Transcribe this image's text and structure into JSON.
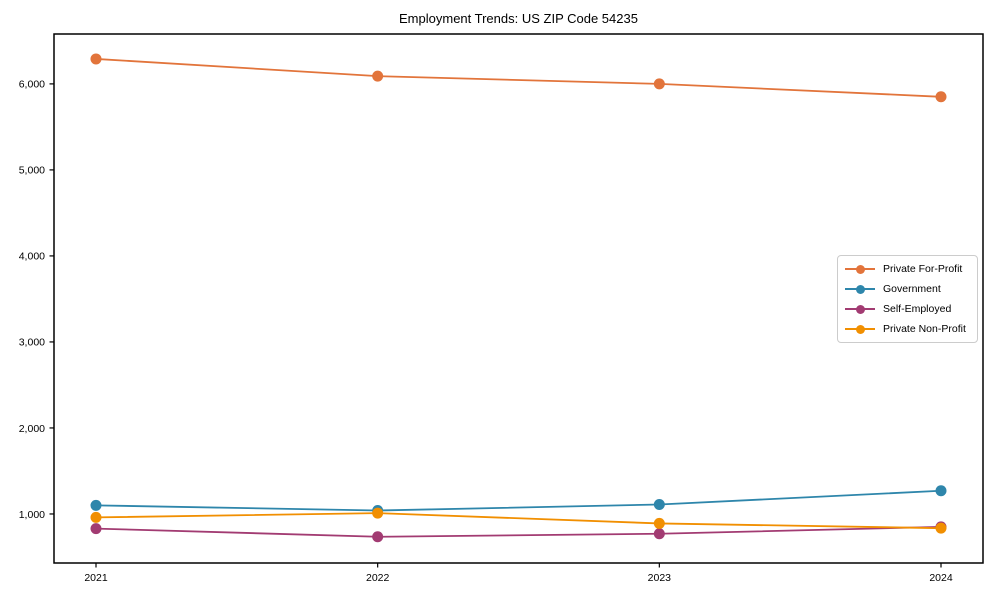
{
  "title": "Employment Trends: US ZIP Code 54235",
  "chart_data": {
    "type": "line",
    "title": "Employment Trends: US ZIP Code 54235",
    "xlabel": "",
    "ylabel": "",
    "x": [
      2021,
      2022,
      2023,
      2024
    ],
    "xtick_labels": [
      "2021",
      "2022",
      "2023",
      "2024"
    ],
    "yticks": [
      1000,
      2000,
      3000,
      4000,
      5000,
      6000
    ],
    "ytick_labels": [
      "1,000",
      "2,000",
      "3,000",
      "4,000",
      "5,000",
      "6,000"
    ],
    "ylim": [
      430,
      6580
    ],
    "grid": false,
    "legend_position": "center right",
    "marker": "circle",
    "series": [
      {
        "name": "Private For-Profit",
        "color": "#E2743B",
        "values": [
          6290,
          6090,
          6000,
          5850
        ]
      },
      {
        "name": "Government",
        "color": "#2E86AB",
        "values": [
          1100,
          1040,
          1110,
          1270
        ]
      },
      {
        "name": "Self-Employed",
        "color": "#A23B72",
        "values": [
          830,
          735,
          770,
          850
        ]
      },
      {
        "name": "Private Non-Profit",
        "color": "#F18F01",
        "values": [
          960,
          1010,
          890,
          835
        ]
      }
    ]
  }
}
